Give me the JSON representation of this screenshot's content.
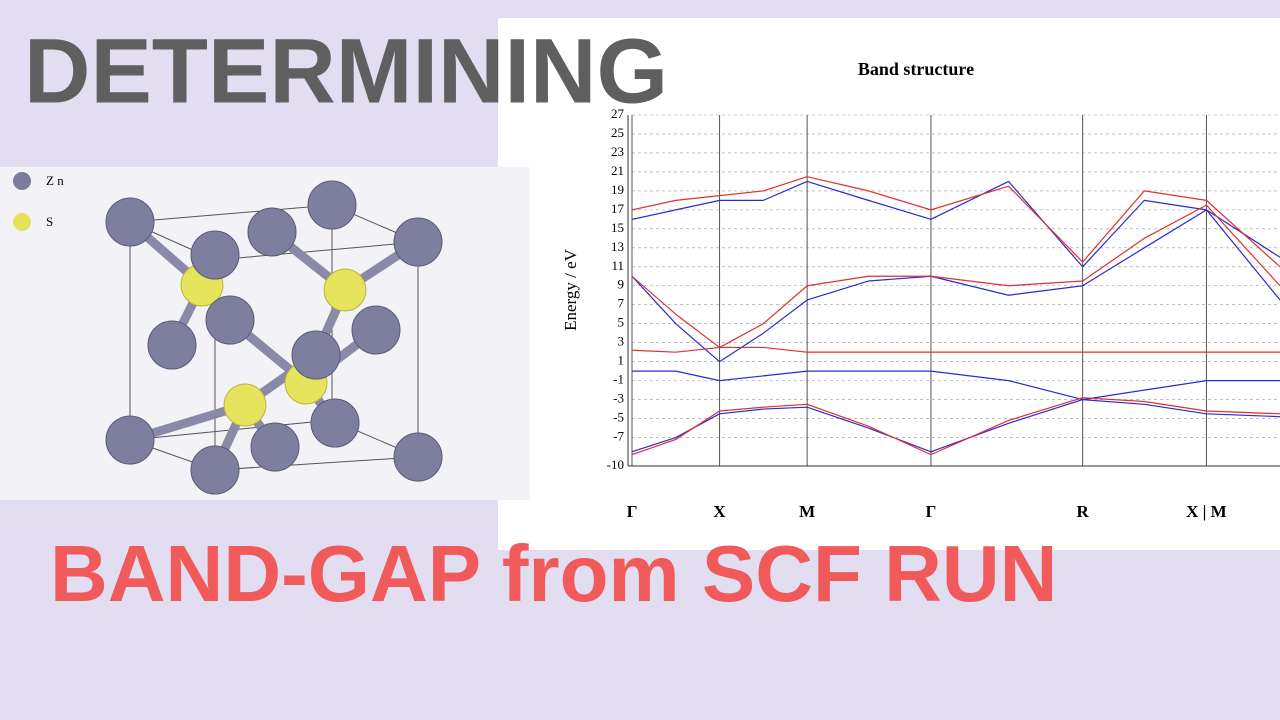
{
  "header": {
    "title": "DETERMINING",
    "subtitle": "BAND-GAP from SCF RUN"
  },
  "structure": {
    "legend": [
      "Z n",
      "S"
    ]
  },
  "chart_data": {
    "type": "line",
    "title": "Band structure",
    "ylabel": "Energy / eV",
    "x": [
      0,
      0.5,
      1,
      1.5,
      2,
      2.7,
      3.414,
      4.3,
      5.146,
      5.85,
      6.56,
      7.4
    ],
    "xlim": [
      0,
      7.4
    ],
    "xticks": [
      {
        "value": 0,
        "label": "Γ"
      },
      {
        "value": 1,
        "label": "X"
      },
      {
        "value": 2,
        "label": "M"
      },
      {
        "value": 3.414,
        "label": "Γ"
      },
      {
        "value": 5.146,
        "label": "R"
      },
      {
        "value": 6.56,
        "label": "X | M"
      }
    ],
    "ylim": [
      -10,
      27
    ],
    "yticks": [
      -10,
      -7,
      -5,
      -3,
      -1,
      1,
      3,
      5,
      7,
      9,
      11,
      13,
      15,
      17,
      19,
      21,
      23,
      25,
      27
    ],
    "grid": true,
    "series": [
      {
        "color": "#2b2bd0",
        "values": [
          -8.5,
          -7,
          -4.5,
          -4,
          -3.8,
          -6,
          -8.5,
          -5.5,
          -3,
          -3.5,
          -4.5,
          -4.8
        ]
      },
      {
        "color": "#2b2bd0",
        "values": [
          0,
          0,
          -1,
          -0.5,
          0,
          0,
          0,
          -1,
          -3,
          -2,
          -1,
          -1
        ]
      },
      {
        "color": "#2b2bd0",
        "values": [
          10,
          5,
          1,
          4,
          7.5,
          9.5,
          10,
          8,
          9,
          13,
          17,
          7.5
        ]
      },
      {
        "color": "#2b2bd0",
        "values": [
          16,
          17,
          18,
          18,
          20,
          18,
          16,
          20,
          11,
          18,
          17,
          12
        ]
      },
      {
        "color": "#e03030",
        "values": [
          -8.8,
          -7.2,
          -4.2,
          -3.8,
          -3.5,
          -5.8,
          -8.8,
          -5.2,
          -2.8,
          -3.2,
          -4.2,
          -4.5
        ]
      },
      {
        "color": "#e03030",
        "values": [
          2.2,
          2,
          2.5,
          2.5,
          2,
          2,
          2,
          2,
          2,
          2,
          2,
          2
        ]
      },
      {
        "color": "#e03030",
        "values": [
          10,
          6,
          2.5,
          5,
          9,
          10,
          10,
          9,
          9.5,
          14,
          17.5,
          9
        ]
      },
      {
        "color": "#e03030",
        "values": [
          17,
          18,
          18.5,
          19,
          20.5,
          19,
          17,
          19.5,
          11.5,
          19,
          18,
          11
        ]
      }
    ]
  }
}
